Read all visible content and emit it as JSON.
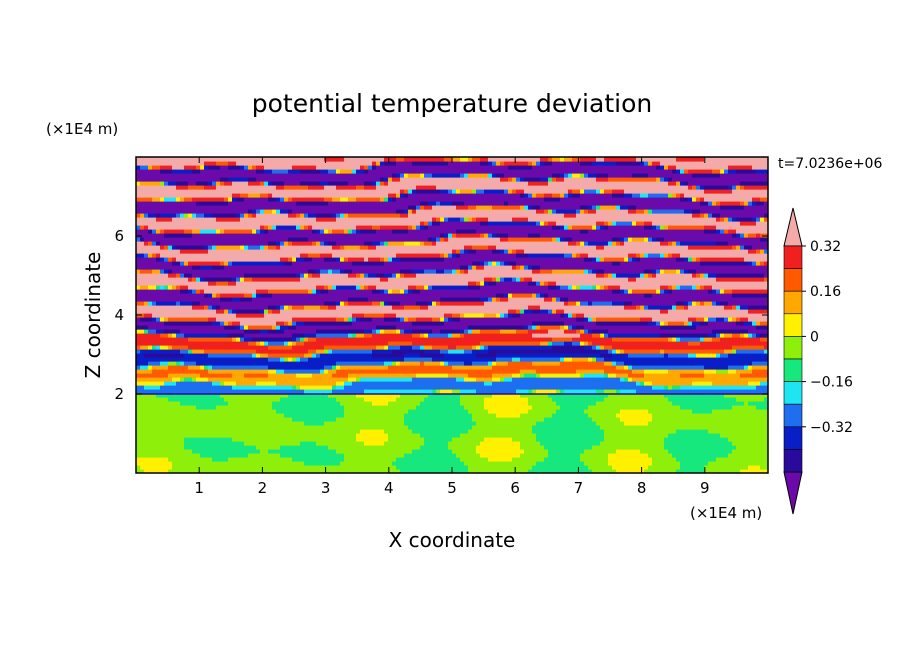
{
  "chart_data": {
    "type": "heatmap",
    "title": "potential temperature deviation",
    "xlabel": "X coordinate",
    "ylabel": "Z coordinate",
    "x_unit": "(×1E4 m)",
    "y_unit": "(×1E4 m)",
    "time_label": "t=7.0236e+06",
    "xlim": [
      0,
      10
    ],
    "ylim": [
      0,
      8
    ],
    "x_ticks": [
      "1",
      "2",
      "3",
      "4",
      "5",
      "6",
      "7",
      "8",
      "9"
    ],
    "y_ticks": [
      "2",
      "4",
      "6"
    ],
    "colorbar": {
      "labels": [
        "0.32",
        "0.16",
        "0",
        "−0.16",
        "−0.32"
      ],
      "levels": [
        -0.4,
        -0.32,
        -0.24,
        -0.16,
        -0.08,
        0,
        0.08,
        0.16,
        0.24,
        0.32,
        0.4
      ],
      "colors": [
        "#6a0aaa",
        "#2a0a9a",
        "#0a1ec8",
        "#1e6ef0",
        "#1ee6f0",
        "#16e87e",
        "#8ef00a",
        "#fff000",
        "#ffa800",
        "#ff5a00",
        "#f02020",
        "#f4aaa8"
      ]
    },
    "fields": {
      "upper_layers_description_omitted": true,
      "bands": [
        {
          "z": 7.65,
          "v": -1
        },
        {
          "z": 7.25,
          "v": 1
        },
        {
          "z": 6.85,
          "v": -1
        },
        {
          "z": 6.45,
          "v": 1
        },
        {
          "z": 6.05,
          "v": -1
        },
        {
          "z": 5.7,
          "v": 1
        },
        {
          "z": 5.35,
          "v": -1
        },
        {
          "z": 5.0,
          "v": 1
        },
        {
          "z": 4.65,
          "v": -1
        },
        {
          "z": 4.3,
          "v": 0.7
        },
        {
          "z": 3.95,
          "v": -0.7
        },
        {
          "z": 3.6,
          "v": 0.6
        },
        {
          "z": 3.25,
          "v": -0.6
        },
        {
          "z": 2.9,
          "v": 0.5
        },
        {
          "z": 2.55,
          "v": -0.5
        },
        {
          "z": 2.2,
          "v": -0.6
        }
      ],
      "lower_region_top": 2.0,
      "lower_values": [
        0,
        0.08
      ]
    }
  }
}
